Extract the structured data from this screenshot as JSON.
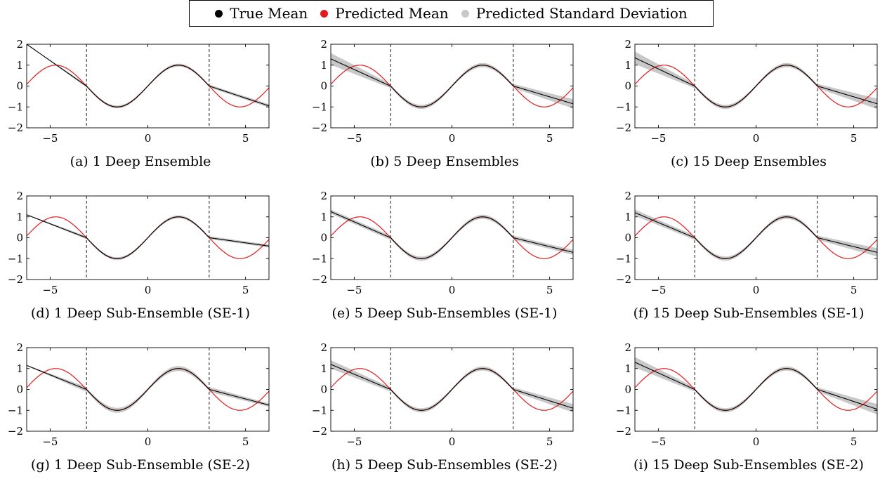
{
  "legend": {
    "items": [
      {
        "label": "True Mean",
        "color": "#000000"
      },
      {
        "label": "Predicted Mean",
        "color": "#e31a1c"
      },
      {
        "label": "Predicted Standard Deviation",
        "color": "#c8c8c8"
      }
    ]
  },
  "colors": {
    "true_mean": "#000000",
    "predicted_mean": "#e31a1c",
    "std_band": "#c8c8c8"
  },
  "chart_data": [
    {
      "type": "line",
      "caption": "(a) 1 Deep Ensemble",
      "xlim": [
        -6.2,
        6.2
      ],
      "ylim": [
        -2,
        2
      ],
      "x_ticks": [
        -5,
        0,
        5
      ],
      "y_ticks": [
        -2,
        -1,
        0,
        1,
        2
      ],
      "dashed_vlines": [
        -3.14,
        3.14
      ],
      "extrapolation": {
        "left_y_at_xmin": 2.0,
        "right_y_at_xmax": -0.95
      },
      "std": [
        0.0,
        0.07,
        0.08
      ],
      "series": [
        {
          "name": "True Mean"
        },
        {
          "name": "Predicted Mean"
        },
        {
          "name": "Predicted Standard Deviation"
        }
      ]
    },
    {
      "type": "line",
      "caption": "(b) 5 Deep Ensembles",
      "xlim": [
        -6.2,
        6.2
      ],
      "ylim": [
        -2,
        2
      ],
      "x_ticks": [
        -5,
        0,
        5
      ],
      "y_ticks": [
        -2,
        -1,
        0,
        1,
        2
      ],
      "dashed_vlines": [
        -3.14,
        3.14
      ],
      "extrapolation": {
        "left_y_at_xmin": 1.3,
        "right_y_at_xmax": -0.85
      },
      "std": [
        0.28,
        0.1,
        0.22
      ],
      "series": [
        {
          "name": "True Mean"
        },
        {
          "name": "Predicted Mean"
        },
        {
          "name": "Predicted Standard Deviation"
        }
      ]
    },
    {
      "type": "line",
      "caption": "(c) 15 Deep Ensembles",
      "xlim": [
        -6.2,
        6.2
      ],
      "ylim": [
        -2,
        2
      ],
      "x_ticks": [
        -5,
        0,
        5
      ],
      "y_ticks": [
        -2,
        -1,
        0,
        1,
        2
      ],
      "dashed_vlines": [
        -3.14,
        3.14
      ],
      "extrapolation": {
        "left_y_at_xmin": 1.35,
        "right_y_at_xmax": -0.85
      },
      "std": [
        0.3,
        0.1,
        0.25
      ],
      "series": [
        {
          "name": "True Mean"
        },
        {
          "name": "Predicted Mean"
        },
        {
          "name": "Predicted Standard Deviation"
        }
      ]
    },
    {
      "type": "line",
      "caption": "(d) 1 Deep Sub-Ensemble (SE-1)",
      "xlim": [
        -6.2,
        6.2
      ],
      "ylim": [
        -2,
        2
      ],
      "x_ticks": [
        -5,
        0,
        5
      ],
      "y_ticks": [
        -2,
        -1,
        0,
        1,
        2
      ],
      "dashed_vlines": [
        -3.14,
        3.14
      ],
      "extrapolation": {
        "left_y_at_xmin": 1.1,
        "right_y_at_xmax": -0.4
      },
      "std": [
        0.02,
        0.07,
        0.07
      ],
      "series": [
        {
          "name": "True Mean"
        },
        {
          "name": "Predicted Mean"
        },
        {
          "name": "Predicted Standard Deviation"
        }
      ]
    },
    {
      "type": "line",
      "caption": "(e) 5 Deep Sub-Ensembles (SE-1)",
      "xlim": [
        -6.2,
        6.2
      ],
      "ylim": [
        -2,
        2
      ],
      "x_ticks": [
        -5,
        0,
        5
      ],
      "y_ticks": [
        -2,
        -1,
        0,
        1,
        2
      ],
      "dashed_vlines": [
        -3.14,
        3.14
      ],
      "extrapolation": {
        "left_y_at_xmin": 1.25,
        "right_y_at_xmax": -0.7
      },
      "std": [
        0.1,
        0.1,
        0.12
      ],
      "series": [
        {
          "name": "True Mean"
        },
        {
          "name": "Predicted Mean"
        },
        {
          "name": "Predicted Standard Deviation"
        }
      ]
    },
    {
      "type": "line",
      "caption": "(f) 15 Deep Sub-Ensembles (SE-1)",
      "xlim": [
        -6.2,
        6.2
      ],
      "ylim": [
        -2,
        2
      ],
      "x_ticks": [
        -5,
        0,
        5
      ],
      "y_ticks": [
        -2,
        -1,
        0,
        1,
        2
      ],
      "dashed_vlines": [
        -3.14,
        3.14
      ],
      "extrapolation": {
        "left_y_at_xmin": 1.2,
        "right_y_at_xmax": -0.7
      },
      "std": [
        0.15,
        0.1,
        0.2
      ],
      "series": [
        {
          "name": "True Mean"
        },
        {
          "name": "Predicted Mean"
        },
        {
          "name": "Predicted Standard Deviation"
        }
      ]
    },
    {
      "type": "line",
      "caption": "(g) 1 Deep Sub-Ensemble (SE-2)",
      "xlim": [
        -6.2,
        6.2
      ],
      "ylim": [
        -2,
        2
      ],
      "x_ticks": [
        -5,
        0,
        5
      ],
      "y_ticks": [
        -2,
        -1,
        0,
        1,
        2
      ],
      "dashed_vlines": [
        -3.14,
        3.14
      ],
      "extrapolation": {
        "left_y_at_xmin": 1.15,
        "right_y_at_xmax": -0.75
      },
      "std": [
        0.02,
        0.12,
        0.08
      ],
      "series": [
        {
          "name": "True Mean"
        },
        {
          "name": "Predicted Mean"
        },
        {
          "name": "Predicted Standard Deviation"
        }
      ]
    },
    {
      "type": "line",
      "caption": "(h) 5 Deep Sub-Ensembles (SE-2)",
      "xlim": [
        -6.2,
        6.2
      ],
      "ylim": [
        -2,
        2
      ],
      "x_ticks": [
        -5,
        0,
        5
      ],
      "y_ticks": [
        -2,
        -1,
        0,
        1,
        2
      ],
      "dashed_vlines": [
        -3.14,
        3.14
      ],
      "extrapolation": {
        "left_y_at_xmin": 1.2,
        "right_y_at_xmax": -0.9
      },
      "std": [
        0.2,
        0.1,
        0.2
      ],
      "series": [
        {
          "name": "True Mean"
        },
        {
          "name": "Predicted Mean"
        },
        {
          "name": "Predicted Standard Deviation"
        }
      ]
    },
    {
      "type": "line",
      "caption": "(i) 15 Deep Sub-Ensembles (SE-2)",
      "xlim": [
        -6.2,
        6.2
      ],
      "ylim": [
        -2,
        2
      ],
      "x_ticks": [
        -5,
        0,
        5
      ],
      "y_ticks": [
        -2,
        -1,
        0,
        1,
        2
      ],
      "dashed_vlines": [
        -3.14,
        3.14
      ],
      "extrapolation": {
        "left_y_at_xmin": 1.3,
        "right_y_at_xmax": -0.95
      },
      "std": [
        0.25,
        0.1,
        0.25
      ],
      "series": [
        {
          "name": "True Mean"
        },
        {
          "name": "Predicted Mean"
        },
        {
          "name": "Predicted Standard Deviation"
        }
      ]
    }
  ]
}
